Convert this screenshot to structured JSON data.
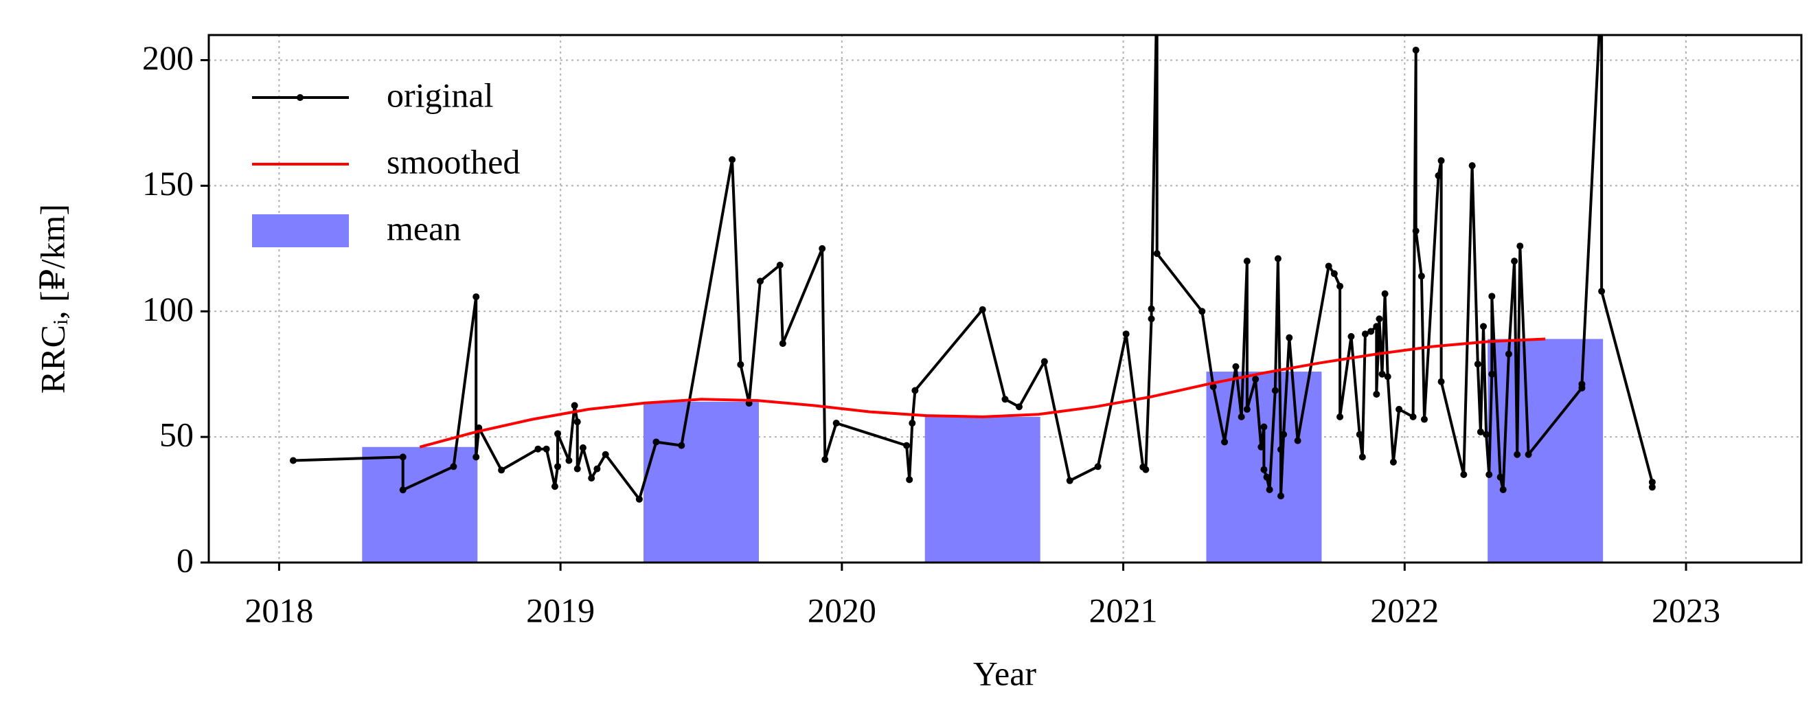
{
  "chart_data": {
    "type": "line",
    "xlabel": "Year",
    "ylabel": "RRCᵢ, [₽/km]",
    "xlim": [
      2017.75,
      2023.41
    ],
    "xticks": [
      2018,
      2019,
      2020,
      2021,
      2022,
      2023
    ],
    "ylim": [
      0,
      210
    ],
    "yticks": [
      0,
      50,
      100,
      150,
      200
    ],
    "grid": true,
    "legend": "upper left",
    "series": [
      {
        "name": "original",
        "type": "line",
        "marker": true,
        "color": "#000000",
        "x": [
          2018.05,
          2018.44,
          2018.44,
          2018.62,
          2018.7,
          2018.7,
          2018.71,
          2018.79,
          2018.92,
          2018.95,
          2018.98,
          2018.99,
          2018.99,
          2019.03,
          2019.05,
          2019.06,
          2019.06,
          2019.08,
          2019.11,
          2019.13,
          2019.16,
          2019.28,
          2019.34,
          2019.43,
          2019.61,
          2019.64,
          2019.67,
          2019.71,
          2019.78,
          2019.79,
          2019.93,
          2019.94,
          2019.98,
          2020.23,
          2020.24,
          2020.25,
          2020.26,
          2020.5,
          2020.58,
          2020.63,
          2020.72,
          2020.81,
          2020.91,
          2021.01,
          2021.07,
          2021.08,
          2021.1,
          2021.1,
          2021.12,
          2021.12,
          2021.28,
          2021.32,
          2021.36,
          2021.4,
          2021.42,
          2021.44,
          2021.44,
          2021.47,
          2021.49,
          2021.5,
          2021.5,
          2021.51,
          2021.52,
          2021.54,
          2021.55,
          2021.56,
          2021.56,
          2021.57,
          2021.59,
          2021.62,
          2021.73,
          2021.75,
          2021.77,
          2021.77,
          2021.81,
          2021.84,
          2021.85,
          2021.86,
          2021.88,
          2021.9,
          2021.9,
          2021.91,
          2021.92,
          2021.93,
          2021.94,
          2021.96,
          2021.98,
          2022.03,
          2022.04,
          2022.04,
          2022.06,
          2022.07,
          2022.12,
          2022.13,
          2022.13,
          2022.21,
          2022.24,
          2022.26,
          2022.27,
          2022.28,
          2022.29,
          2022.3,
          2022.31,
          2022.31,
          2022.34,
          2022.35,
          2022.37,
          2022.39,
          2022.4,
          2022.41,
          2022.44,
          2022.63,
          2022.63,
          2022.7,
          2022.7,
          2022.88,
          2022.88
        ],
        "values": [
          40.6,
          42,
          28.9,
          38.2,
          105.8,
          42,
          53.6,
          36.8,
          45.2,
          45.2,
          30.3,
          38.2,
          51.3,
          40.6,
          62.5,
          56,
          37.3,
          45.7,
          33.6,
          37.3,
          43,
          25.2,
          48,
          46.6,
          160.4,
          78.8,
          63.4,
          112,
          118.4,
          87.2,
          125,
          41,
          55.5,
          46.6,
          33,
          55.5,
          68.5,
          100.7,
          65,
          62,
          80,
          32.6,
          38.2,
          91,
          38,
          37,
          97,
          101,
          230,
          123,
          100,
          70,
          48,
          78,
          58,
          120,
          61,
          73,
          46,
          54,
          37,
          34,
          29,
          68.5,
          121,
          45,
          26.5,
          51,
          89.5,
          48.5,
          118,
          115,
          110,
          58,
          90,
          51,
          42,
          91,
          92,
          94,
          67,
          97,
          75,
          107,
          74,
          40,
          61,
          58,
          204,
          132,
          114,
          57,
          154,
          160,
          72,
          35,
          158,
          79,
          52,
          94,
          51,
          35,
          75,
          106,
          34,
          29,
          83,
          120,
          43,
          126,
          43,
          69.5,
          71,
          230,
          108,
          32,
          30
        ]
      },
      {
        "name": "smoothed",
        "type": "line",
        "marker": false,
        "color": "#ff0000",
        "x": [
          2018.5,
          2018.7,
          2018.9,
          2019.1,
          2019.3,
          2019.5,
          2019.7,
          2019.9,
          2020.1,
          2020.3,
          2020.5,
          2020.7,
          2020.9,
          2021.1,
          2021.3,
          2021.5,
          2021.7,
          2021.9,
          2022.1,
          2022.3,
          2022.5
        ],
        "values": [
          46,
          52,
          57,
          61,
          63.5,
          65,
          64.5,
          62.5,
          60,
          58.5,
          58,
          59,
          62,
          66,
          71,
          75.5,
          79.5,
          83,
          86,
          88,
          89
        ]
      },
      {
        "name": "mean",
        "type": "bar",
        "color": "#7f7fff",
        "x": [
          2018.5,
          2019.5,
          2020.5,
          2021.5,
          2022.5
        ],
        "values": [
          46,
          64,
          58,
          76,
          89
        ]
      }
    ]
  }
}
